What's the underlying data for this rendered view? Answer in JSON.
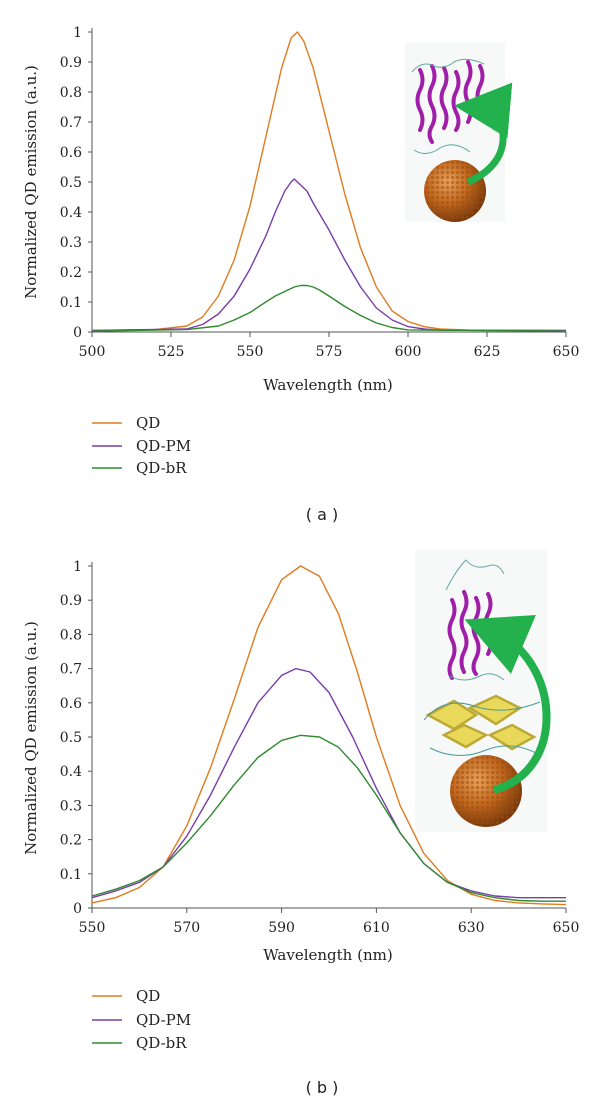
{
  "chart_data": [
    {
      "type": "line",
      "panel_label": "( a )",
      "xlabel": "Wavelength (nm)",
      "ylabel": "Normalized QD emission (a.u.)",
      "xlim": [
        500,
        650
      ],
      "ylim": [
        0,
        1
      ],
      "x_ticks": [
        "500",
        "525",
        "550",
        "575",
        "600",
        "625",
        "650"
      ],
      "y_ticks": [
        "0",
        "0.1",
        "0.2",
        "0.3",
        "0.4",
        "0.5",
        "0.6",
        "0.7",
        "0.8",
        "0.9",
        "1"
      ],
      "legend_position": "bottom-left",
      "inset": "protein-quantum-dot-energy-transfer-illustration",
      "series": [
        {
          "name": "QD",
          "color": "#e07b1f",
          "x": [
            500,
            520,
            530,
            535,
            540,
            545,
            550,
            555,
            560,
            563,
            565,
            567,
            570,
            575,
            580,
            585,
            590,
            595,
            600,
            605,
            610,
            615,
            620,
            650
          ],
          "y": [
            0.005,
            0.008,
            0.02,
            0.05,
            0.12,
            0.24,
            0.42,
            0.65,
            0.88,
            0.98,
            1.0,
            0.97,
            0.88,
            0.67,
            0.46,
            0.28,
            0.15,
            0.07,
            0.035,
            0.018,
            0.01,
            0.008,
            0.006,
            0.005
          ]
        },
        {
          "name": "QD-PM",
          "color": "#7a3da8",
          "x": [
            500,
            530,
            535,
            540,
            545,
            550,
            555,
            558,
            561,
            563,
            564,
            566,
            568,
            570,
            575,
            580,
            585,
            590,
            595,
            600,
            605,
            610,
            650
          ],
          "y": [
            0.005,
            0.01,
            0.025,
            0.06,
            0.12,
            0.21,
            0.32,
            0.4,
            0.47,
            0.5,
            0.51,
            0.49,
            0.47,
            0.43,
            0.34,
            0.24,
            0.15,
            0.08,
            0.04,
            0.018,
            0.01,
            0.006,
            0.005
          ]
        },
        {
          "name": "QD-bR",
          "color": "#2e8b2e",
          "x": [
            500,
            530,
            540,
            545,
            550,
            555,
            558,
            560,
            562,
            564,
            566,
            568,
            570,
            572,
            575,
            580,
            585,
            590,
            595,
            600,
            650
          ],
          "y": [
            0.003,
            0.008,
            0.02,
            0.04,
            0.065,
            0.1,
            0.12,
            0.13,
            0.14,
            0.15,
            0.155,
            0.155,
            0.15,
            0.14,
            0.12,
            0.085,
            0.055,
            0.03,
            0.015,
            0.007,
            0.003
          ]
        }
      ]
    },
    {
      "type": "line",
      "panel_label": "( b )",
      "xlabel": "Wavelength (nm)",
      "ylabel": "Normalized QD emission (a.u.)",
      "xlim": [
        550,
        650
      ],
      "ylim": [
        0,
        1
      ],
      "x_ticks": [
        "550",
        "570",
        "590",
        "610",
        "630",
        "650"
      ],
      "y_ticks": [
        "0",
        "0.1",
        "0.2",
        "0.3",
        "0.4",
        "0.5",
        "0.6",
        "0.7",
        "0.8",
        "0.9",
        "1"
      ],
      "legend_position": "bottom-left",
      "inset": "antibody-protein-quantum-dot-illustration",
      "series": [
        {
          "name": "QD",
          "color": "#e07b1f",
          "x": [
            550,
            555,
            560,
            565,
            570,
            575,
            580,
            585,
            590,
            594,
            598,
            602,
            606,
            610,
            615,
            620,
            625,
            630,
            635,
            640,
            645,
            650
          ],
          "y": [
            0.015,
            0.03,
            0.06,
            0.12,
            0.24,
            0.41,
            0.61,
            0.82,
            0.96,
            1.0,
            0.97,
            0.86,
            0.69,
            0.5,
            0.3,
            0.16,
            0.08,
            0.04,
            0.022,
            0.015,
            0.012,
            0.01
          ]
        },
        {
          "name": "QD-PM",
          "color": "#7a3da8",
          "x": [
            550,
            555,
            560,
            565,
            570,
            575,
            580,
            585,
            590,
            593,
            596,
            600,
            605,
            610,
            615,
            620,
            625,
            630,
            635,
            640,
            645,
            650
          ],
          "y": [
            0.03,
            0.05,
            0.075,
            0.12,
            0.21,
            0.33,
            0.47,
            0.6,
            0.68,
            0.7,
            0.69,
            0.63,
            0.5,
            0.35,
            0.22,
            0.13,
            0.075,
            0.05,
            0.035,
            0.03,
            0.03,
            0.03
          ]
        },
        {
          "name": "QD-bR",
          "color": "#2e8b2e",
          "x": [
            550,
            555,
            560,
            565,
            570,
            575,
            580,
            585,
            590,
            594,
            598,
            602,
            606,
            610,
            615,
            620,
            625,
            630,
            635,
            640,
            645,
            650
          ],
          "y": [
            0.035,
            0.055,
            0.08,
            0.12,
            0.19,
            0.27,
            0.36,
            0.44,
            0.49,
            0.505,
            0.5,
            0.47,
            0.41,
            0.33,
            0.22,
            0.13,
            0.075,
            0.045,
            0.03,
            0.022,
            0.02,
            0.02
          ]
        }
      ]
    }
  ]
}
